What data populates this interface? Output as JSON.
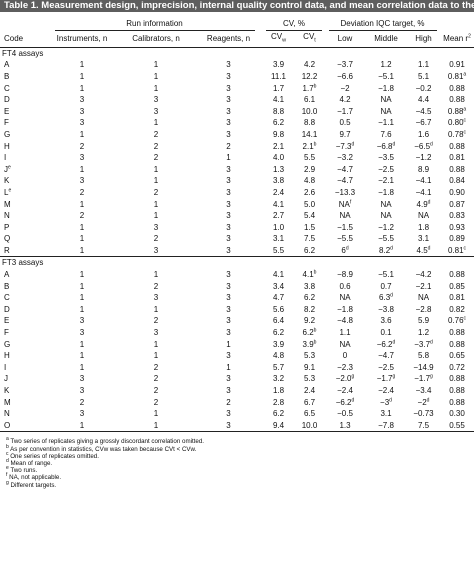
{
  "title": "Table 1. Measurement design, imprecision, internal quality control data, and mean correlation data to the cRMP.",
  "headers": {
    "run_information": "Run information",
    "cv": "CV, %",
    "deviation": "Deviation IQC target, %",
    "code": "Code",
    "instruments": "Instruments, n",
    "calibrators": "Calibrators, n",
    "reagents": "Reagents, n",
    "cvw": "CV",
    "cvw_sub": "w",
    "cvt": "CV",
    "cvt_sub": "t",
    "low": "Low",
    "middle": "Middle",
    "high": "High",
    "mean_r": "Mean r",
    "mean_r_sup": "2"
  },
  "sections": [
    {
      "label": "FT4 assays",
      "rows": [
        {
          "code": "A",
          "code_sup": "",
          "inst": "1",
          "cal": "1",
          "reag": "3",
          "cvw": "3.9",
          "cvw_sup": "",
          "cvt": "4.2",
          "cvt_sup": "",
          "low": "−3.7",
          "low_sup": "",
          "mid": "1.2",
          "mid_sup": "",
          "high": "1.1",
          "high_sup": "",
          "r": "0.91",
          "r_sup": ""
        },
        {
          "code": "B",
          "code_sup": "",
          "inst": "1",
          "cal": "1",
          "reag": "3",
          "cvw": "11.1",
          "cvw_sup": "",
          "cvt": "12.2",
          "cvt_sup": "",
          "low": "−6.6",
          "low_sup": "",
          "mid": "−5.1",
          "mid_sup": "",
          "high": "5.1",
          "high_sup": "",
          "r": "0.81",
          "r_sup": "a"
        },
        {
          "code": "C",
          "code_sup": "",
          "inst": "1",
          "cal": "1",
          "reag": "3",
          "cvw": "1.7",
          "cvw_sup": "",
          "cvt": "1.7",
          "cvt_sup": "b",
          "low": "−2",
          "low_sup": "",
          "mid": "−1.8",
          "mid_sup": "",
          "high": "−0.2",
          "high_sup": "",
          "r": "0.88",
          "r_sup": ""
        },
        {
          "code": "D",
          "code_sup": "",
          "inst": "3",
          "cal": "3",
          "reag": "3",
          "cvw": "4.1",
          "cvw_sup": "",
          "cvt": "6.1",
          "cvt_sup": "",
          "low": "4.2",
          "low_sup": "",
          "mid": "NA",
          "mid_sup": "",
          "high": "4.4",
          "high_sup": "",
          "r": "0.88",
          "r_sup": ""
        },
        {
          "code": "E",
          "code_sup": "",
          "inst": "3",
          "cal": "3",
          "reag": "3",
          "cvw": "8.8",
          "cvw_sup": "",
          "cvt": "10.0",
          "cvt_sup": "",
          "low": "−1.7",
          "low_sup": "",
          "mid": "NA",
          "mid_sup": "",
          "high": "−4.5",
          "high_sup": "",
          "r": "0.88",
          "r_sup": "a"
        },
        {
          "code": "F",
          "code_sup": "",
          "inst": "3",
          "cal": "1",
          "reag": "3",
          "cvw": "6.2",
          "cvw_sup": "",
          "cvt": "8.8",
          "cvt_sup": "",
          "low": "0.5",
          "low_sup": "",
          "mid": "−1.1",
          "mid_sup": "",
          "high": "−6.7",
          "high_sup": "",
          "r": "0.80",
          "r_sup": "c"
        },
        {
          "code": "G",
          "code_sup": "",
          "inst": "1",
          "cal": "2",
          "reag": "3",
          "cvw": "9.8",
          "cvw_sup": "",
          "cvt": "14.1",
          "cvt_sup": "",
          "low": "9.7",
          "low_sup": "",
          "mid": "7.6",
          "mid_sup": "",
          "high": "1.6",
          "high_sup": "",
          "r": "0.78",
          "r_sup": "c"
        },
        {
          "code": "H",
          "code_sup": "",
          "inst": "2",
          "cal": "2",
          "reag": "2",
          "cvw": "2.1",
          "cvw_sup": "",
          "cvt": "2.1",
          "cvt_sup": "b",
          "low": "−7.3",
          "low_sup": "d",
          "mid": "−6.8",
          "mid_sup": "d",
          "high": "−6.5",
          "high_sup": "d",
          "r": "0.88",
          "r_sup": ""
        },
        {
          "code": "I",
          "code_sup": "",
          "inst": "3",
          "cal": "2",
          "reag": "1",
          "cvw": "4.0",
          "cvw_sup": "",
          "cvt": "5.5",
          "cvt_sup": "",
          "low": "−3.2",
          "low_sup": "",
          "mid": "−3.5",
          "mid_sup": "",
          "high": "−1.2",
          "high_sup": "",
          "r": "0.81",
          "r_sup": ""
        },
        {
          "code": "J",
          "code_sup": "e",
          "inst": "1",
          "cal": "1",
          "reag": "3",
          "cvw": "1.3",
          "cvw_sup": "",
          "cvt": "2.9",
          "cvt_sup": "",
          "low": "−4.7",
          "low_sup": "",
          "mid": "−2.5",
          "mid_sup": "",
          "high": "8.9",
          "high_sup": "",
          "r": "0.88",
          "r_sup": ""
        },
        {
          "code": "K",
          "code_sup": "",
          "inst": "3",
          "cal": "1",
          "reag": "3",
          "cvw": "3.8",
          "cvw_sup": "",
          "cvt": "4.8",
          "cvt_sup": "",
          "low": "−4.7",
          "low_sup": "",
          "mid": "−2.1",
          "mid_sup": "",
          "high": "−4.1",
          "high_sup": "",
          "r": "0.84",
          "r_sup": ""
        },
        {
          "code": "L",
          "code_sup": "e",
          "inst": "2",
          "cal": "2",
          "reag": "3",
          "cvw": "2.4",
          "cvw_sup": "",
          "cvt": "2.6",
          "cvt_sup": "",
          "low": "−13.3",
          "low_sup": "",
          "mid": "−1.8",
          "mid_sup": "",
          "high": "−4.1",
          "high_sup": "",
          "r": "0.90",
          "r_sup": ""
        },
        {
          "code": "M",
          "code_sup": "",
          "inst": "1",
          "cal": "1",
          "reag": "3",
          "cvw": "4.1",
          "cvw_sup": "",
          "cvt": "5.0",
          "cvt_sup": "",
          "low": "NA",
          "low_sup": "f",
          "mid": "NA",
          "mid_sup": "",
          "high": "4.9",
          "high_sup": "d",
          "r": "0.87",
          "r_sup": ""
        },
        {
          "code": "N",
          "code_sup": "",
          "inst": "2",
          "cal": "1",
          "reag": "3",
          "cvw": "2.7",
          "cvw_sup": "",
          "cvt": "5.4",
          "cvt_sup": "",
          "low": "NA",
          "low_sup": "",
          "mid": "NA",
          "mid_sup": "",
          "high": "NA",
          "high_sup": "",
          "r": "0.83",
          "r_sup": ""
        },
        {
          "code": "P",
          "code_sup": "",
          "inst": "1",
          "cal": "3",
          "reag": "3",
          "cvw": "1.0",
          "cvw_sup": "",
          "cvt": "1.5",
          "cvt_sup": "",
          "low": "−1.5",
          "low_sup": "",
          "mid": "−1.2",
          "mid_sup": "",
          "high": "1.8",
          "high_sup": "",
          "r": "0.93",
          "r_sup": ""
        },
        {
          "code": "Q",
          "code_sup": "",
          "inst": "1",
          "cal": "2",
          "reag": "3",
          "cvw": "3.1",
          "cvw_sup": "",
          "cvt": "7.5",
          "cvt_sup": "",
          "low": "−5.5",
          "low_sup": "",
          "mid": "−5.5",
          "mid_sup": "",
          "high": "3.1",
          "high_sup": "",
          "r": "0.89",
          "r_sup": ""
        },
        {
          "code": "R",
          "code_sup": "",
          "inst": "1",
          "cal": "3",
          "reag": "3",
          "cvw": "5.5",
          "cvw_sup": "",
          "cvt": "6.2",
          "cvt_sup": "",
          "low": "6",
          "low_sup": "d",
          "mid": "8.2",
          "mid_sup": "d",
          "high": "4.5",
          "high_sup": "d",
          "r": "0.81",
          "r_sup": "c"
        }
      ]
    },
    {
      "label": "FT3 assays",
      "rows": [
        {
          "code": "A",
          "code_sup": "",
          "inst": "1",
          "cal": "1",
          "reag": "3",
          "cvw": "4.1",
          "cvw_sup": "",
          "cvt": "4.1",
          "cvt_sup": "b",
          "low": "−8.9",
          "low_sup": "",
          "mid": "−5.1",
          "mid_sup": "",
          "high": "−4.2",
          "high_sup": "",
          "r": "0.88",
          "r_sup": ""
        },
        {
          "code": "B",
          "code_sup": "",
          "inst": "1",
          "cal": "2",
          "reag": "3",
          "cvw": "3.4",
          "cvw_sup": "",
          "cvt": "3.8",
          "cvt_sup": "",
          "low": "0.6",
          "low_sup": "",
          "mid": "0.7",
          "mid_sup": "",
          "high": "−2.1",
          "high_sup": "",
          "r": "0.85",
          "r_sup": ""
        },
        {
          "code": "C",
          "code_sup": "",
          "inst": "1",
          "cal": "3",
          "reag": "3",
          "cvw": "4.7",
          "cvw_sup": "",
          "cvt": "6.2",
          "cvt_sup": "",
          "low": "NA",
          "low_sup": "",
          "mid": "6.3",
          "mid_sup": "d",
          "high": "NA",
          "high_sup": "",
          "r": "0.81",
          "r_sup": ""
        },
        {
          "code": "D",
          "code_sup": "",
          "inst": "1",
          "cal": "1",
          "reag": "3",
          "cvw": "5.6",
          "cvw_sup": "",
          "cvt": "8.2",
          "cvt_sup": "",
          "low": "−1.8",
          "low_sup": "",
          "mid": "−3.8",
          "mid_sup": "",
          "high": "−2.8",
          "high_sup": "",
          "r": "0.82",
          "r_sup": ""
        },
        {
          "code": "E",
          "code_sup": "",
          "inst": "3",
          "cal": "2",
          "reag": "3",
          "cvw": "6.4",
          "cvw_sup": "",
          "cvt": "9.2",
          "cvt_sup": "",
          "low": "−4.8",
          "low_sup": "",
          "mid": "3.6",
          "mid_sup": "",
          "high": "5.9",
          "high_sup": "",
          "r": "0.76",
          "r_sup": "c"
        },
        {
          "code": "F",
          "code_sup": "",
          "inst": "3",
          "cal": "3",
          "reag": "3",
          "cvw": "6.2",
          "cvw_sup": "",
          "cvt": "6.2",
          "cvt_sup": "b",
          "low": "1.1",
          "low_sup": "",
          "mid": "0.1",
          "mid_sup": "",
          "high": "1.2",
          "high_sup": "",
          "r": "0.88",
          "r_sup": ""
        },
        {
          "code": "G",
          "code_sup": "",
          "inst": "1",
          "cal": "1",
          "reag": "1",
          "cvw": "3.9",
          "cvw_sup": "",
          "cvt": "3.9",
          "cvt_sup": "b",
          "low": "NA",
          "low_sup": "",
          "mid": "−6.2",
          "mid_sup": "d",
          "high": "−3.7",
          "high_sup": "d",
          "r": "0.88",
          "r_sup": ""
        },
        {
          "code": "H",
          "code_sup": "",
          "inst": "1",
          "cal": "1",
          "reag": "3",
          "cvw": "4.8",
          "cvw_sup": "",
          "cvt": "5.3",
          "cvt_sup": "",
          "low": "0",
          "low_sup": "",
          "mid": "−4.7",
          "mid_sup": "",
          "high": "5.8",
          "high_sup": "",
          "r": "0.65",
          "r_sup": ""
        },
        {
          "code": "I",
          "code_sup": "",
          "inst": "1",
          "cal": "2",
          "reag": "1",
          "cvw": "5.7",
          "cvw_sup": "",
          "cvt": "9.1",
          "cvt_sup": "",
          "low": "−2.3",
          "low_sup": "",
          "mid": "−2.5",
          "mid_sup": "",
          "high": "−14.9",
          "high_sup": "",
          "r": "0.72",
          "r_sup": ""
        },
        {
          "code": "J",
          "code_sup": "",
          "inst": "3",
          "cal": "2",
          "reag": "3",
          "cvw": "3.2",
          "cvw_sup": "",
          "cvt": "5.3",
          "cvt_sup": "",
          "low": "−2.0",
          "low_sup": "g",
          "mid": "−1.7",
          "mid_sup": "g",
          "high": "−1.7",
          "high_sup": "g",
          "r": "0.88",
          "r_sup": ""
        },
        {
          "code": "K",
          "code_sup": "",
          "inst": "3",
          "cal": "2",
          "reag": "3",
          "cvw": "1.8",
          "cvw_sup": "",
          "cvt": "2.4",
          "cvt_sup": "",
          "low": "−2.4",
          "low_sup": "",
          "mid": "−2.4",
          "mid_sup": "",
          "high": "−3.4",
          "high_sup": "",
          "r": "0.88",
          "r_sup": ""
        },
        {
          "code": "M",
          "code_sup": "",
          "inst": "2",
          "cal": "2",
          "reag": "2",
          "cvw": "2.8",
          "cvw_sup": "",
          "cvt": "6.7",
          "cvt_sup": "",
          "low": "−6.2",
          "low_sup": "d",
          "mid": "−3",
          "mid_sup": "d",
          "high": "−2",
          "high_sup": "d",
          "r": "0.88",
          "r_sup": ""
        },
        {
          "code": "N",
          "code_sup": "",
          "inst": "3",
          "cal": "1",
          "reag": "3",
          "cvw": "6.2",
          "cvw_sup": "",
          "cvt": "6.5",
          "cvt_sup": "",
          "low": "−0.5",
          "low_sup": "",
          "mid": "3.1",
          "mid_sup": "",
          "high": "−0.73",
          "high_sup": "",
          "r": "0.30",
          "r_sup": ""
        },
        {
          "code": "O",
          "code_sup": "",
          "inst": "1",
          "cal": "1",
          "reag": "3",
          "cvw": "9.4",
          "cvw_sup": "",
          "cvt": "10.0",
          "cvt_sup": "",
          "low": "1.3",
          "low_sup": "",
          "mid": "−7.8",
          "mid_sup": "",
          "high": "7.5",
          "high_sup": "",
          "r": "0.55",
          "r_sup": ""
        }
      ]
    }
  ],
  "footnotes": [
    {
      "mark": "a",
      "text": "Two series of replicates giving a grossly discordant correlation omitted."
    },
    {
      "mark": "b",
      "text": "As per convention in statistics, CVw was taken because CVt < CVw."
    },
    {
      "mark": "c",
      "text": "One series of replicates omitted."
    },
    {
      "mark": "d",
      "text": "Mean of range."
    },
    {
      "mark": "e",
      "text": "Two runs."
    },
    {
      "mark": "f",
      "text": "NA, not applicable."
    },
    {
      "mark": "g",
      "text": "Different targets."
    }
  ]
}
